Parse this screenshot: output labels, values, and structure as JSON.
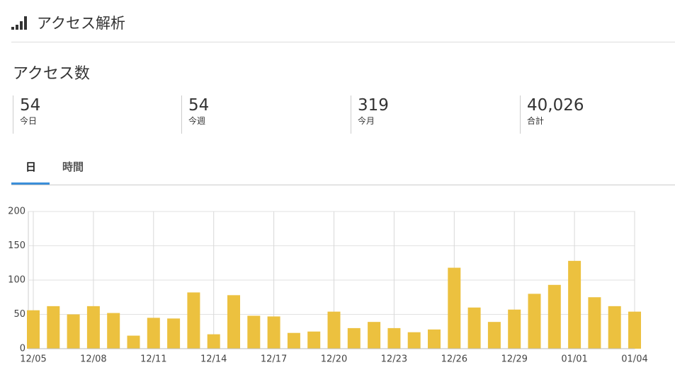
{
  "header": {
    "title": "アクセス解析"
  },
  "section_title": "アクセス数",
  "stats": [
    {
      "value": "54",
      "label": "今日"
    },
    {
      "value": "54",
      "label": "今週"
    },
    {
      "value": "319",
      "label": "今月"
    },
    {
      "value": "40,026",
      "label": "合計"
    }
  ],
  "tabs": [
    "日",
    "時間"
  ],
  "chart_data": {
    "type": "bar",
    "categories": [
      "12/05",
      null,
      null,
      "12/08",
      null,
      null,
      "12/11",
      null,
      null,
      "12/14",
      null,
      null,
      "12/17",
      null,
      null,
      "12/20",
      null,
      null,
      "12/23",
      null,
      null,
      "12/26",
      null,
      null,
      "12/29",
      null,
      null,
      "01/01",
      null,
      null,
      "01/04"
    ],
    "values": [
      56,
      62,
      50,
      62,
      52,
      19,
      45,
      44,
      82,
      21,
      78,
      48,
      47,
      23,
      25,
      54,
      30,
      39,
      30,
      24,
      28,
      118,
      60,
      39,
      57,
      80,
      93,
      128,
      75,
      62,
      54
    ],
    "color": "#ecc13f",
    "ylim": [
      0,
      200
    ],
    "yticks": [
      0,
      50,
      100,
      150,
      200
    ],
    "grid": true,
    "xgrid": true
  }
}
